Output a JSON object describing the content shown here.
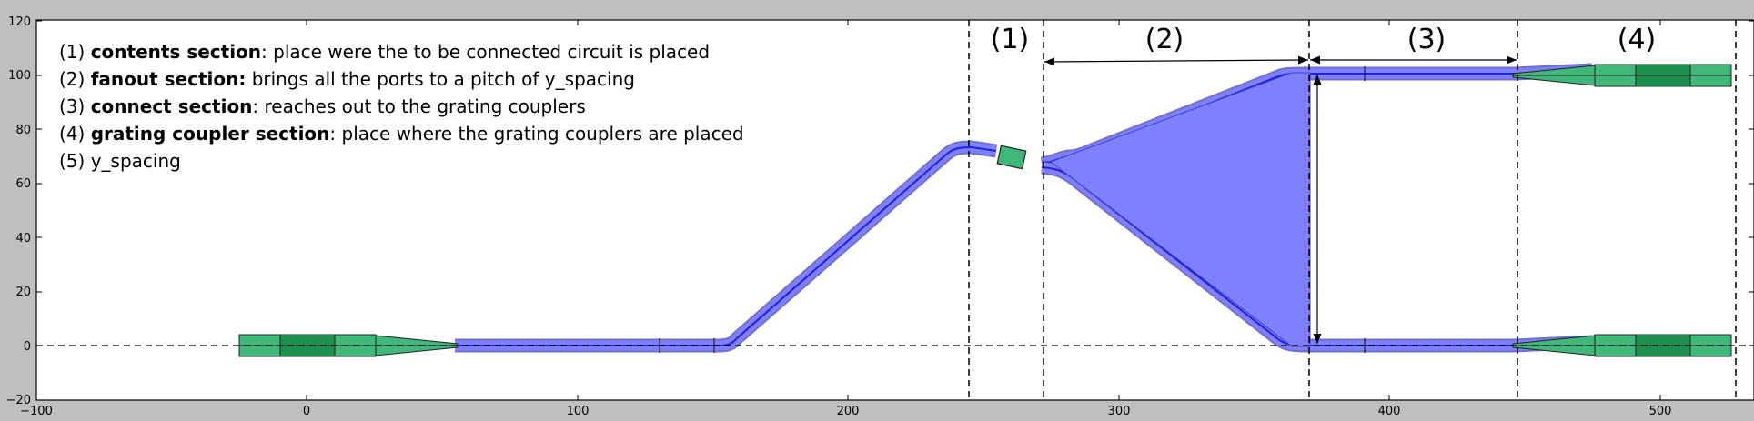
{
  "axes": {
    "x_ticks": [
      "−100",
      "0",
      "100",
      "200",
      "300",
      "400",
      "500"
    ],
    "y_ticks": [
      "−20",
      "0",
      "20",
      "40",
      "60",
      "80",
      "100",
      "120"
    ]
  },
  "legend": [
    {
      "num": "(1) ",
      "bold": "contents section",
      "rest": ": place were the to be connected circuit is placed"
    },
    {
      "num": "(2) ",
      "bold": "fanout section:",
      "rest": " brings all the ports to a pitch of y_spacing"
    },
    {
      "num": "(3) ",
      "bold": "connect section",
      "rest": ": reaches out to the grating couplers"
    },
    {
      "num": "(4) ",
      "bold": "grating coupler section",
      "rest": ": place where the grating couplers are placed"
    },
    {
      "num": "(5) ",
      "bold": "",
      "rest": "y_spacing"
    }
  ],
  "sections": [
    {
      "label": "(1)"
    },
    {
      "label": "(2)"
    },
    {
      "label": "(3)"
    },
    {
      "label": "(4)"
    }
  ],
  "colors": {
    "waveguide": "#8080ff",
    "waveguide_edge": "#4040c0",
    "waveguide_core": "#2020e0",
    "grating": "#3fb87a",
    "grating_dark": "#1d8f4e",
    "background": "#bfbfbf",
    "plot_area": "#ffffff"
  }
}
